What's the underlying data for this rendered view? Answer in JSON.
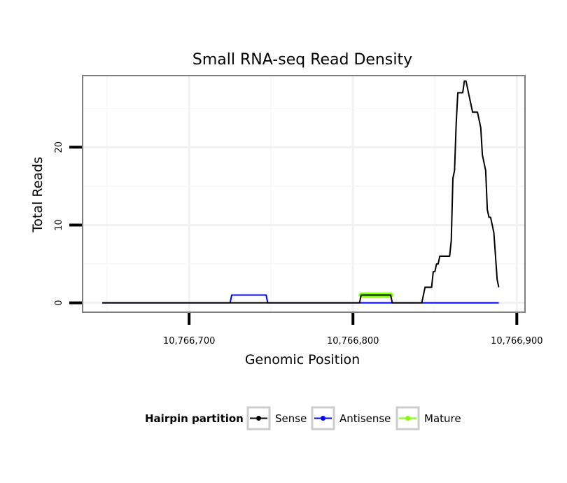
{
  "chart_data": {
    "type": "line",
    "title": "Small RNA-seq Read Density",
    "xlabel": "Genomic Position",
    "ylabel": "Total Reads",
    "xlim": [
      10766635,
      10766905
    ],
    "ylim": [
      -1.2,
      29.2
    ],
    "x_ticks": [
      10766700,
      10766800,
      10766900
    ],
    "x_tick_labels": [
      "10,766,700",
      "10,766,800",
      "10,766,900"
    ],
    "y_ticks": [
      0,
      10,
      20
    ],
    "y_tick_labels": [
      "0",
      "10",
      "20"
    ],
    "grid": true,
    "legend": {
      "title": "Hairpin partition",
      "position": "bottom"
    },
    "series": [
      {
        "name": "Sense",
        "color": "#000000",
        "x": [
          10766647,
          10766725,
          10766726,
          10766737,
          10766747,
          10766748,
          10766804,
          10766805,
          10766823,
          10766824,
          10766842,
          10766843,
          10766844,
          10766848,
          10766849,
          10766850,
          10766851,
          10766852,
          10766853,
          10766854,
          10766859,
          10766860,
          10766861,
          10766862,
          10766863,
          10766864,
          10766865,
          10766866,
          10766867,
          10766868,
          10766869,
          10766870,
          10766871,
          10766872,
          10766873,
          10766874,
          10766875,
          10766876,
          10766877,
          10766878,
          10766879,
          10766880,
          10766881,
          10766882,
          10766883,
          10766884,
          10766885,
          10766886,
          10766887,
          10766888,
          10766889
        ],
        "y": [
          0,
          0,
          0,
          0,
          0,
          0,
          0,
          1,
          1,
          0,
          0,
          1,
          2,
          2,
          4,
          4,
          5,
          5,
          6,
          6,
          6,
          8,
          16,
          17,
          23,
          27,
          27,
          27,
          27,
          28.5,
          28.5,
          27.5,
          26.5,
          25.5,
          24.5,
          24.5,
          24.5,
          24.5,
          23.5,
          22.5,
          19,
          18,
          17,
          12,
          11,
          11,
          10,
          9,
          6,
          3,
          2
        ]
      },
      {
        "name": "Antisense",
        "color": "#0000ff",
        "x": [
          10766647,
          10766725,
          10766726,
          10766747,
          10766748,
          10766889
        ],
        "y": [
          0,
          0,
          1,
          1,
          0,
          0
        ]
      },
      {
        "name": "Mature",
        "color": "#7fff00",
        "x": [
          10766805,
          10766823
        ],
        "y": [
          1,
          1
        ]
      }
    ]
  }
}
